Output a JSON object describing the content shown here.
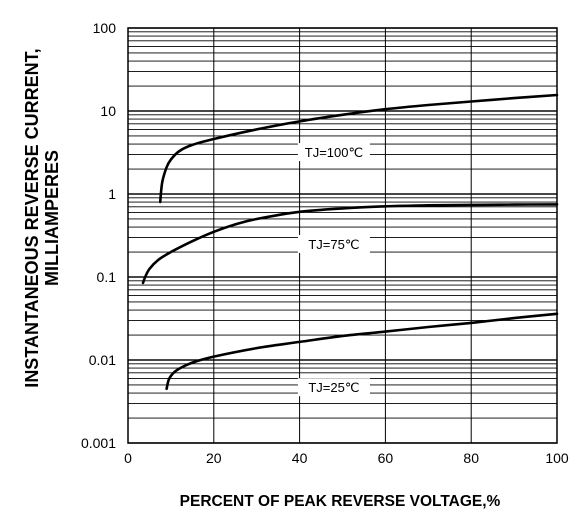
{
  "chart_data": {
    "type": "line",
    "title": "",
    "xlabel": "PERCENT OF PEAK REVERSE VOLTAGE,%",
    "ylabel": "INSTANTANEOUS REVERSE CURRENT,",
    "ylabel2": "MILLIAMPERES",
    "xlim": [
      0,
      100
    ],
    "ylim": [
      0.001,
      100
    ],
    "yscale": "log",
    "grid": true,
    "x_ticks": [
      "0",
      "20",
      "40",
      "60",
      "80",
      "100"
    ],
    "y_ticks": [
      "0.001",
      "0.01",
      "0.1",
      "1",
      "10",
      "100"
    ],
    "series": [
      {
        "name": "TJ=100℃",
        "x": [
          7.5,
          8,
          9,
          10,
          12,
          15,
          20,
          30,
          40,
          50,
          60,
          70,
          80,
          90,
          100
        ],
        "y": [
          0.8,
          1.4,
          2.1,
          2.6,
          3.3,
          3.9,
          4.6,
          6.0,
          7.5,
          9.0,
          10.5,
          11.8,
          13.0,
          14.3,
          15.6
        ]
      },
      {
        "name": "TJ=75℃",
        "x": [
          3.5,
          4,
          5,
          7,
          10,
          15,
          20,
          25,
          30,
          40,
          50,
          60,
          70,
          80,
          90,
          100
        ],
        "y": [
          0.085,
          0.1,
          0.125,
          0.16,
          0.2,
          0.27,
          0.35,
          0.43,
          0.5,
          0.61,
          0.67,
          0.71,
          0.73,
          0.74,
          0.745,
          0.75
        ]
      },
      {
        "name": "TJ=25℃",
        "x": [
          9,
          9.5,
          10.5,
          12,
          15,
          20,
          30,
          40,
          50,
          60,
          70,
          80,
          90,
          100
        ],
        "y": [
          0.0045,
          0.0058,
          0.0069,
          0.0079,
          0.0093,
          0.011,
          0.0139,
          0.0165,
          0.0195,
          0.022,
          0.025,
          0.028,
          0.032,
          0.036
        ]
      }
    ],
    "annotations": [
      {
        "text": "TJ=100℃",
        "x": 48,
        "y": 3.2
      },
      {
        "text": "TJ=75℃",
        "x": 48,
        "y": 0.25
      },
      {
        "text": "TJ=25℃",
        "x": 48,
        "y": 0.0047
      }
    ]
  }
}
